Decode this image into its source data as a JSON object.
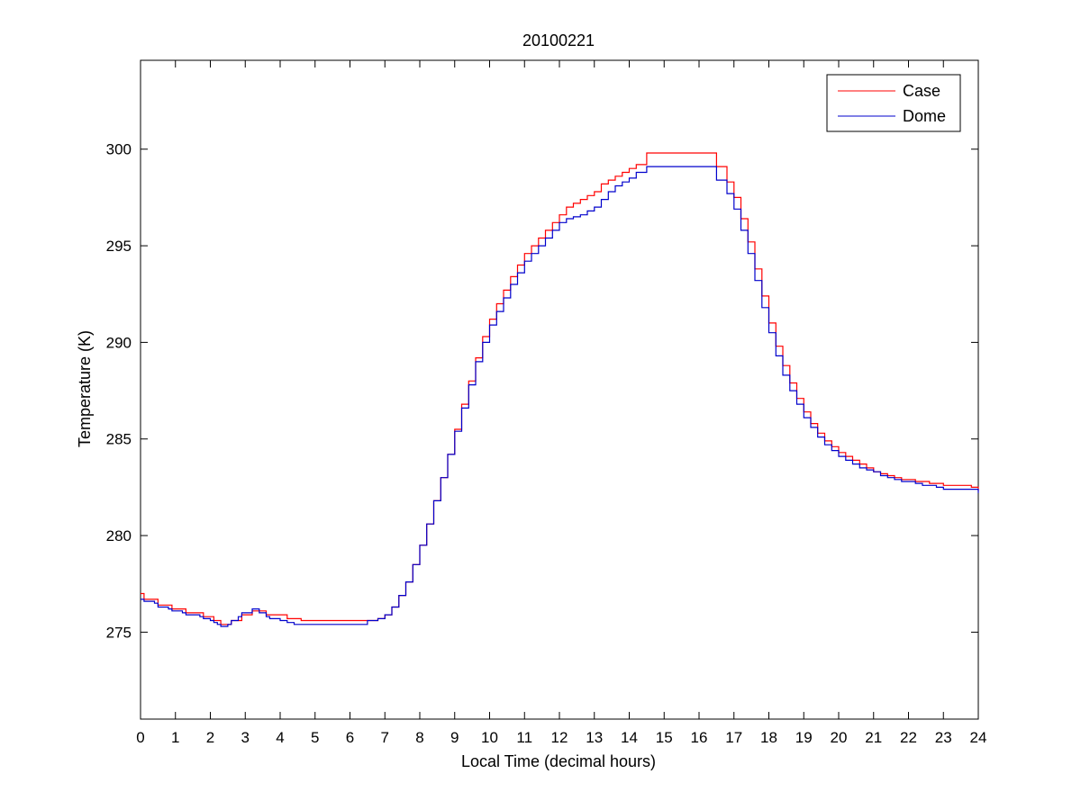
{
  "chart_data": {
    "type": "line",
    "title": "20100221",
    "xlabel": "Local Time (decimal hours)",
    "ylabel": "Temperature (K)",
    "xlim": [
      0,
      24
    ],
    "ylim": [
      270.5,
      304.6
    ],
    "xticks": [
      "0",
      "1",
      "2",
      "3",
      "4",
      "5",
      "6",
      "7",
      "8",
      "9",
      "10",
      "11",
      "12",
      "13",
      "14",
      "15",
      "16",
      "17",
      "18",
      "19",
      "20",
      "21",
      "22",
      "23",
      "24"
    ],
    "yticks": [
      "275",
      "280",
      "285",
      "290",
      "295",
      "300"
    ],
    "grid": false,
    "legend_position": "top-right",
    "series": [
      {
        "name": "Case",
        "color": "#ff0000",
        "x": [
          0,
          0.1,
          0.4,
          0.5,
          0.8,
          0.9,
          1.2,
          1.3,
          1.7,
          1.8,
          2.0,
          2.1,
          2.2,
          2.3,
          2.5,
          2.6,
          2.8,
          2.9,
          3.2,
          3.4,
          3.6,
          3.7,
          4.0,
          4.2,
          4.4,
          4.6,
          6.5,
          6.8,
          7.0,
          7.2,
          7.4,
          7.6,
          7.8,
          8.0,
          8.2,
          8.4,
          8.6,
          8.8,
          9.0,
          9.2,
          9.4,
          9.6,
          9.8,
          10.0,
          10.2,
          10.4,
          10.6,
          10.8,
          11.0,
          11.2,
          11.4,
          11.6,
          11.8,
          12.0,
          12.2,
          12.4,
          12.6,
          12.8,
          13.0,
          13.2,
          13.4,
          13.6,
          13.8,
          14.0,
          14.2,
          14.5,
          16.3,
          16.5,
          16.8,
          17.0,
          17.2,
          17.4,
          17.6,
          17.8,
          18.0,
          18.2,
          18.4,
          18.6,
          18.8,
          19.0,
          19.2,
          19.4,
          19.6,
          19.8,
          20.0,
          20.2,
          20.4,
          20.6,
          20.8,
          21.0,
          21.2,
          21.4,
          21.6,
          21.8,
          22.0,
          22.2,
          22.4,
          22.6,
          22.8,
          23.0,
          23.4,
          23.8,
          24.0
        ],
        "y": [
          277.0,
          276.7,
          276.7,
          276.4,
          276.4,
          276.2,
          276.2,
          276.0,
          276.0,
          275.8,
          275.8,
          275.6,
          275.6,
          275.4,
          275.4,
          275.6,
          275.6,
          275.9,
          276.1,
          276.1,
          275.9,
          275.9,
          275.9,
          275.7,
          275.7,
          275.6,
          275.6,
          275.7,
          275.9,
          276.3,
          276.9,
          277.6,
          278.5,
          279.5,
          280.6,
          281.8,
          283.0,
          284.2,
          285.5,
          286.8,
          288.0,
          289.2,
          290.3,
          291.2,
          292.0,
          292.7,
          293.4,
          294.0,
          294.6,
          295.0,
          295.4,
          295.8,
          296.2,
          296.6,
          297.0,
          297.2,
          297.4,
          297.6,
          297.8,
          298.2,
          298.4,
          298.6,
          298.8,
          299.0,
          299.2,
          299.8,
          299.8,
          299.1,
          298.3,
          297.5,
          296.4,
          295.2,
          293.8,
          292.4,
          291.0,
          289.8,
          288.8,
          287.9,
          287.1,
          286.4,
          285.8,
          285.3,
          284.9,
          284.6,
          284.3,
          284.1,
          283.9,
          283.7,
          283.5,
          283.3,
          283.2,
          283.1,
          283.0,
          282.9,
          282.9,
          282.8,
          282.8,
          282.7,
          282.7,
          282.6,
          282.6,
          282.5,
          282.3
        ]
      },
      {
        "name": "Dome",
        "color": "#0000cc",
        "x": [
          0,
          0.1,
          0.4,
          0.5,
          0.8,
          0.9,
          1.2,
          1.3,
          1.7,
          1.8,
          2.0,
          2.1,
          2.2,
          2.3,
          2.5,
          2.6,
          2.8,
          2.9,
          3.2,
          3.4,
          3.6,
          3.7,
          4.0,
          4.2,
          4.4,
          4.6,
          6.5,
          6.8,
          7.0,
          7.2,
          7.4,
          7.6,
          7.8,
          8.0,
          8.2,
          8.4,
          8.6,
          8.8,
          9.0,
          9.2,
          9.4,
          9.6,
          9.8,
          10.0,
          10.2,
          10.4,
          10.6,
          10.8,
          11.0,
          11.2,
          11.4,
          11.6,
          11.8,
          12.0,
          12.2,
          12.4,
          12.6,
          12.8,
          13.0,
          13.2,
          13.4,
          13.6,
          13.8,
          14.0,
          14.2,
          14.5,
          16.3,
          16.5,
          16.8,
          17.0,
          17.2,
          17.4,
          17.6,
          17.8,
          18.0,
          18.2,
          18.4,
          18.6,
          18.8,
          19.0,
          19.2,
          19.4,
          19.6,
          19.8,
          20.0,
          20.2,
          20.4,
          20.6,
          20.8,
          21.0,
          21.2,
          21.4,
          21.6,
          21.8,
          22.0,
          22.2,
          22.4,
          22.6,
          22.8,
          23.0,
          23.4,
          23.8,
          24.0
        ],
        "y": [
          276.7,
          276.6,
          276.5,
          276.3,
          276.2,
          276.1,
          276.0,
          275.9,
          275.8,
          275.7,
          275.6,
          275.5,
          275.4,
          275.3,
          275.4,
          275.6,
          275.8,
          276.0,
          276.2,
          276.0,
          275.8,
          275.7,
          275.6,
          275.5,
          275.4,
          275.4,
          275.6,
          275.7,
          275.9,
          276.3,
          276.9,
          277.6,
          278.5,
          279.5,
          280.6,
          281.8,
          283.0,
          284.2,
          285.4,
          286.6,
          287.8,
          289.0,
          290.0,
          290.9,
          291.6,
          292.3,
          293.0,
          293.6,
          294.2,
          294.6,
          295.0,
          295.4,
          295.8,
          296.2,
          296.4,
          296.5,
          296.6,
          296.8,
          297.0,
          297.4,
          297.8,
          298.1,
          298.3,
          298.5,
          298.8,
          299.1,
          299.1,
          298.4,
          297.7,
          296.9,
          295.8,
          294.6,
          293.2,
          291.8,
          290.5,
          289.3,
          288.3,
          287.5,
          286.8,
          286.1,
          285.6,
          285.1,
          284.7,
          284.4,
          284.1,
          283.9,
          283.7,
          283.5,
          283.4,
          283.3,
          283.1,
          283.0,
          282.9,
          282.8,
          282.8,
          282.7,
          282.6,
          282.6,
          282.5,
          282.4,
          282.4,
          282.4,
          282.2
        ]
      }
    ]
  }
}
